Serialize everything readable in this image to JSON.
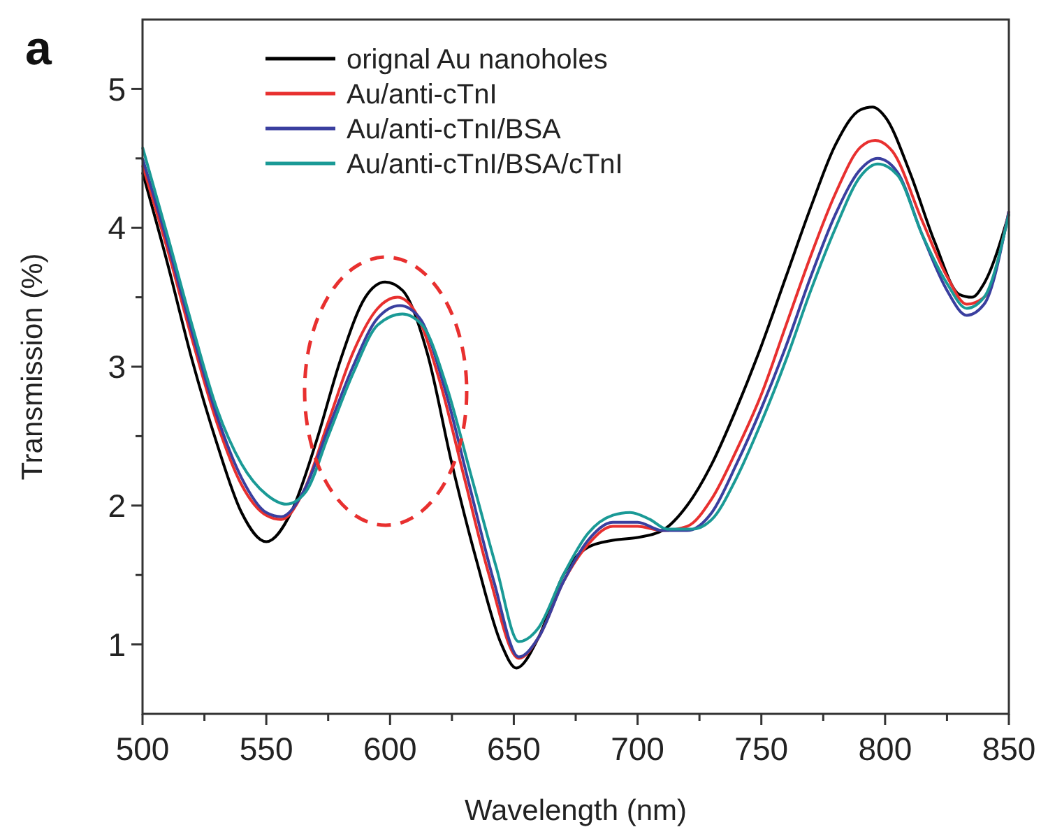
{
  "chart_data": {
    "type": "line",
    "xlabel": "Wavelength (nm)",
    "ylabel": "Transmission (%)",
    "annotations": [
      "a"
    ],
    "xlim": [
      500,
      850
    ],
    "xticks": [
      500,
      {
        "value": 525,
        "label": null
      },
      550,
      {
        "value": 575,
        "label": null
      },
      600,
      {
        "value": 625,
        "label": null
      },
      650,
      {
        "value": 675,
        "label": null
      },
      700,
      {
        "value": 725,
        "label": null
      },
      750,
      {
        "value": 775,
        "label": null
      },
      800,
      {
        "value": 825,
        "label": null
      },
      850
    ],
    "ylim": [
      0.5,
      5.5
    ],
    "yticks": [
      1,
      {
        "value": 1.5,
        "label": null
      },
      2,
      {
        "value": 2.5,
        "label": null
      },
      3,
      {
        "value": 3.5,
        "label": null
      },
      4,
      {
        "value": 4.5,
        "label": null
      },
      5
    ],
    "grid": false,
    "legend": "top left",
    "marker": "none",
    "line_style": "solid",
    "series": [
      {
        "name": "orignal Au nanoholes",
        "color": "#000000",
        "x": [
          500,
          510,
          520,
          530,
          540,
          550,
          560,
          570,
          580,
          590,
          598,
          605,
          615,
          625,
          635,
          645,
          651,
          660,
          670,
          680,
          690,
          700,
          710,
          720,
          730,
          740,
          750,
          760,
          770,
          780,
          790,
          795,
          800,
          810,
          820,
          830,
          835,
          840,
          850
        ],
        "values": [
          4.4,
          3.75,
          3.05,
          2.45,
          1.95,
          1.74,
          1.95,
          2.45,
          3.05,
          3.5,
          3.61,
          3.55,
          3.1,
          2.3,
          1.6,
          1.0,
          0.83,
          1.05,
          1.5,
          1.7,
          1.75,
          1.77,
          1.82,
          2.0,
          2.3,
          2.7,
          3.15,
          3.65,
          4.15,
          4.6,
          4.85,
          4.87,
          4.8,
          4.4,
          3.9,
          3.52,
          3.5,
          3.6,
          4.1
        ]
      },
      {
        "name": "Au/anti-cTnI",
        "color": "#e8302f",
        "x": [
          500,
          510,
          520,
          530,
          540,
          550,
          556,
          565,
          575,
          585,
          595,
          603,
          610,
          620,
          630,
          640,
          652,
          660,
          670,
          680,
          690,
          700,
          710,
          720,
          730,
          740,
          750,
          760,
          770,
          780,
          790,
          796,
          803,
          815,
          825,
          833,
          840,
          850
        ],
        "values": [
          4.45,
          3.85,
          3.2,
          2.6,
          2.15,
          1.93,
          1.9,
          2.1,
          2.6,
          3.1,
          3.42,
          3.5,
          3.4,
          2.9,
          2.2,
          1.5,
          0.9,
          1.05,
          1.45,
          1.72,
          1.85,
          1.85,
          1.82,
          1.85,
          2.05,
          2.4,
          2.8,
          3.3,
          3.8,
          4.25,
          4.58,
          4.63,
          4.55,
          4.05,
          3.65,
          3.45,
          3.5,
          4.12
        ]
      },
      {
        "name": "Au/anti-cTnI/BSA",
        "color": "#3a3f9f",
        "x": [
          500,
          510,
          520,
          530,
          540,
          550,
          556,
          565,
          575,
          585,
          595,
          604,
          612,
          622,
          632,
          642,
          652,
          660,
          670,
          680,
          690,
          700,
          710,
          720,
          730,
          740,
          750,
          760,
          770,
          780,
          790,
          797,
          805,
          815,
          825,
          833,
          840,
          850
        ],
        "values": [
          4.5,
          3.9,
          3.25,
          2.65,
          2.2,
          1.95,
          1.92,
          2.1,
          2.55,
          3.0,
          3.35,
          3.44,
          3.35,
          2.85,
          2.15,
          1.45,
          0.91,
          1.05,
          1.45,
          1.75,
          1.88,
          1.88,
          1.82,
          1.82,
          1.95,
          2.3,
          2.7,
          3.15,
          3.65,
          4.1,
          4.42,
          4.5,
          4.4,
          3.95,
          3.55,
          3.37,
          3.45,
          4.12
        ]
      },
      {
        "name": "Au/anti-cTnI/BSA/cTnI",
        "color": "#1a9a96",
        "x": [
          500,
          510,
          520,
          530,
          540,
          550,
          558,
          566,
          575,
          585,
          595,
          605,
          613,
          623,
          633,
          643,
          652,
          660,
          670,
          680,
          690,
          697,
          705,
          712,
          722,
          730,
          740,
          750,
          760,
          770,
          780,
          790,
          797,
          805,
          815,
          825,
          833,
          840,
          850
        ],
        "values": [
          4.58,
          3.95,
          3.3,
          2.7,
          2.3,
          2.08,
          2.01,
          2.1,
          2.5,
          2.95,
          3.3,
          3.38,
          3.3,
          2.85,
          2.2,
          1.55,
          1.02,
          1.12,
          1.5,
          1.8,
          1.93,
          1.95,
          1.9,
          1.83,
          1.83,
          1.9,
          2.2,
          2.6,
          3.05,
          3.55,
          4.0,
          4.37,
          4.46,
          4.38,
          3.95,
          3.6,
          3.42,
          3.5,
          4.1
        ]
      }
    ]
  }
}
